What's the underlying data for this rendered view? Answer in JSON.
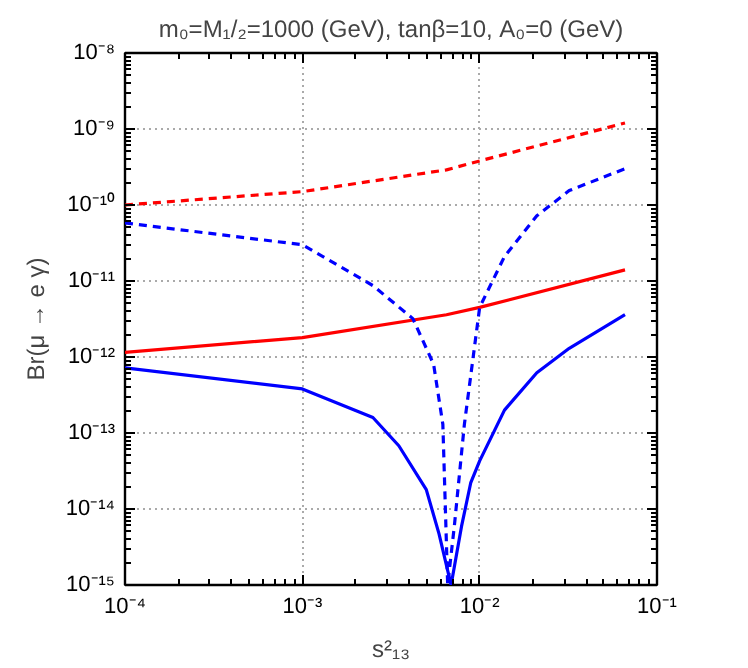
{
  "chart_data": {
    "type": "line",
    "title": "m₀=M₁/₂=1000 (GeV), tanβ=10, A₀=0 (GeV)",
    "xlabel": "s²₁₃",
    "ylabel": "Br(μ → e γ)",
    "log": "xy",
    "grid": true,
    "marker": "none",
    "xlim": [
      0.0001,
      0.1
    ],
    "ylim": [
      1e-15,
      1e-08
    ],
    "xticks": [
      {
        "value": 0.0001,
        "label": "10⁻⁴"
      },
      {
        "value": 0.001,
        "label": "10⁻³"
      },
      {
        "value": 0.01,
        "label": "10⁻²"
      },
      {
        "value": 0.1,
        "label": "10⁻¹"
      }
    ],
    "yticks": [
      {
        "value": 1e-15,
        "label": "10⁻¹⁵"
      },
      {
        "value": 1e-14,
        "label": "10⁻¹⁴"
      },
      {
        "value": 1e-13,
        "label": "10⁻¹³"
      },
      {
        "value": 1e-12,
        "label": "10⁻¹²"
      },
      {
        "value": 1e-11,
        "label": "10⁻¹¹"
      },
      {
        "value": 1e-10,
        "label": "10⁻¹⁰"
      },
      {
        "value": 1e-09,
        "label": "10⁻⁹"
      },
      {
        "value": 1e-08,
        "label": "10⁻⁸"
      }
    ],
    "series": [
      {
        "color": "#ff0000",
        "line_style": "dashed",
        "x": [
          0.0001,
          0.001,
          0.0065,
          0.01,
          0.066
        ],
        "values": [
          1e-10,
          1.5e-10,
          2.9e-10,
          3.8e-10,
          1.2e-09
        ]
      },
      {
        "color": "#ff0000",
        "line_style": "solid",
        "x": [
          0.0001,
          0.001,
          0.0065,
          0.01,
          0.066
        ],
        "values": [
          1.15e-12,
          1.8e-12,
          3.6e-12,
          4.5e-12,
          1.4e-11
        ]
      },
      {
        "color": "#0000ff",
        "line_style": "dashed",
        "x": [
          0.0001,
          0.001,
          0.0025,
          0.0042,
          0.0055,
          0.0062,
          0.0066,
          0.0072,
          0.0082,
          0.01,
          0.0138,
          0.021,
          0.032,
          0.066
        ],
        "values": [
          5.8e-11,
          3e-11,
          8.7e-12,
          3.2e-12,
          8e-13,
          1.3e-13,
          1e-15,
          6e-15,
          1.3e-13,
          4.5e-12,
          2.1e-11,
          7.2e-11,
          1.55e-10,
          3e-10
        ]
      },
      {
        "color": "#0000ff",
        "line_style": "solid",
        "x": [
          0.0001,
          0.001,
          0.0025,
          0.0035,
          0.005,
          0.0059,
          0.0069,
          0.0079,
          0.0089,
          0.01,
          0.0138,
          0.021,
          0.032,
          0.066
        ],
        "values": [
          7.2e-13,
          3.8e-13,
          1.6e-13,
          6.8e-14,
          1.8e-14,
          4.7e-15,
          1e-15,
          5.9e-15,
          2.2e-14,
          4.3e-14,
          2e-13,
          6.2e-13,
          1.3e-12,
          3.6e-12
        ]
      }
    ]
  }
}
